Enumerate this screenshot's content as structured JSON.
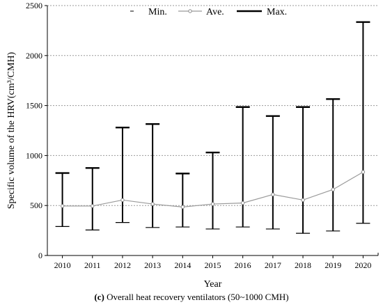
{
  "chart_data": {
    "type": "errorbar",
    "categories": [
      "2010",
      "2011",
      "2012",
      "2013",
      "2014",
      "2015",
      "2016",
      "2017",
      "2018",
      "2019",
      "2020"
    ],
    "series": [
      {
        "name": "Min.",
        "values": [
          290,
          255,
          330,
          280,
          285,
          265,
          285,
          265,
          222,
          245,
          322
        ]
      },
      {
        "name": "Ave.",
        "values": [
          495,
          495,
          555,
          515,
          485,
          515,
          525,
          610,
          555,
          660,
          835
        ]
      },
      {
        "name": "Max.",
        "values": [
          825,
          875,
          1280,
          1315,
          820,
          1030,
          1485,
          1395,
          1485,
          1565,
          2335
        ]
      }
    ],
    "xlabel": "Year",
    "ylabel": "Specific volume of the HRV(cm³/CMH)",
    "ylim": [
      0,
      2500
    ],
    "yticks": [
      0,
      500,
      1000,
      1500,
      2000,
      2500
    ],
    "grid": "horizontal-dotted",
    "legend_position": "top"
  },
  "caption": {
    "label": "(c)",
    "text": "Overall heat recovery ventilators (50~1000 CMH)"
  }
}
